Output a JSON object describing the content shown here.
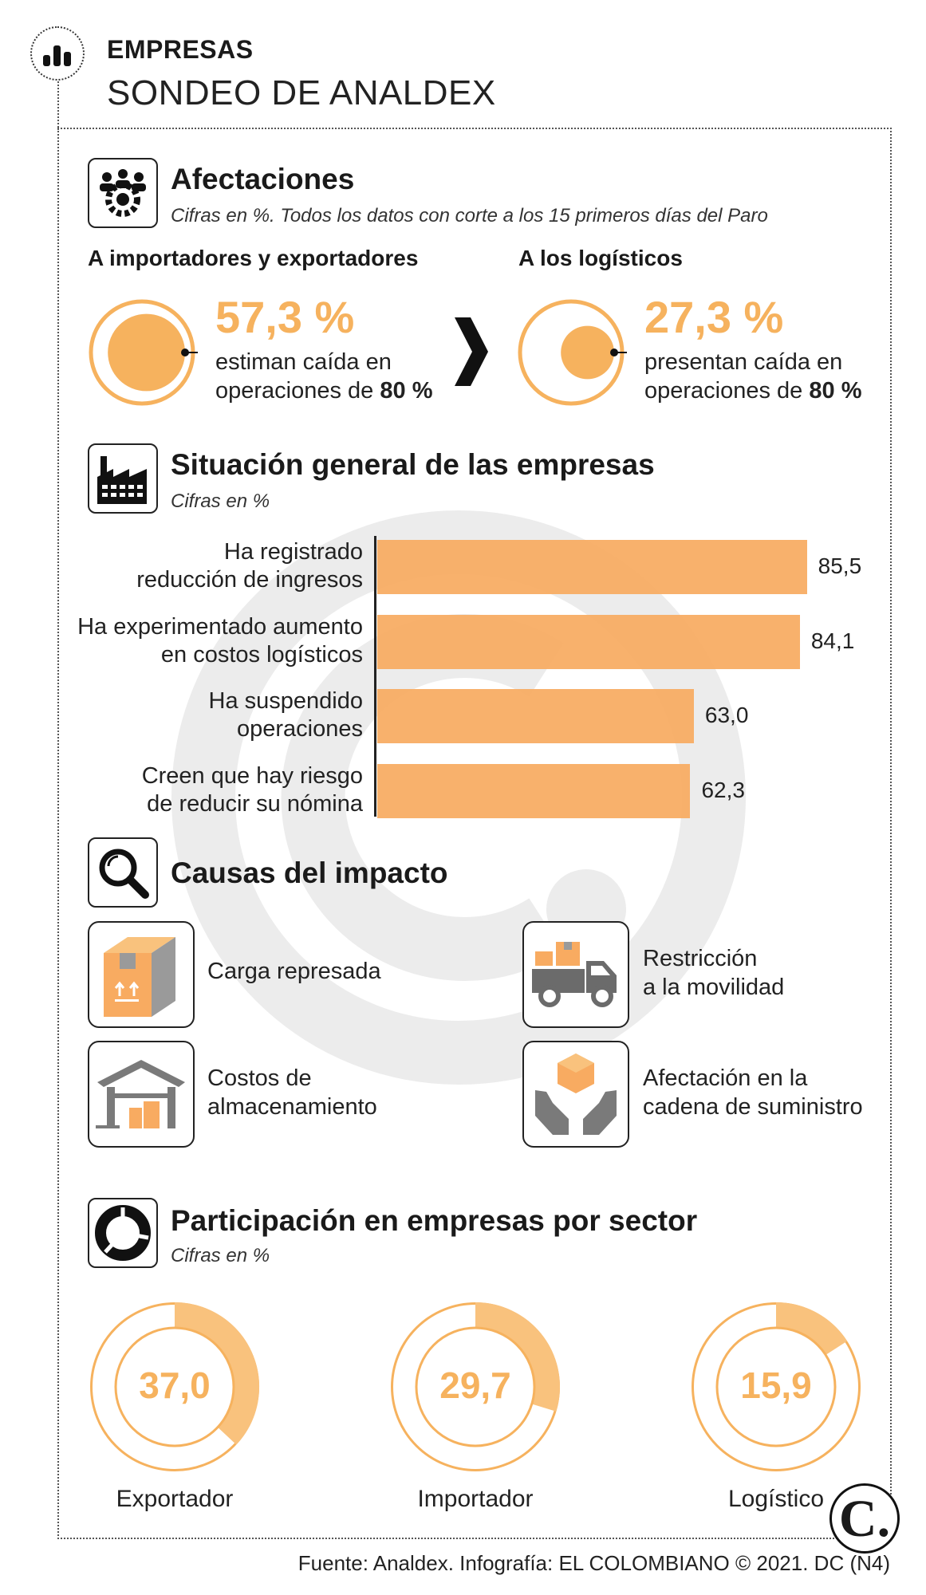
{
  "header": {
    "kicker": "EMPRESAS",
    "title": "SONDEO DE ANALDEX",
    "icon": "bar-chart-icon"
  },
  "afectaciones": {
    "title": "Afectaciones",
    "subtitle": "Cifras en %. Todos los datos con corte a los 15 primeros días del Paro",
    "icon": "people-gear-icon",
    "left": {
      "heading": "A importadores y exportadores",
      "value": "57,3 %",
      "fraction": 0.573,
      "line1": "estiman caída en",
      "line2_prefix": "operaciones de ",
      "line2_bold": "80 %"
    },
    "right": {
      "heading": "A los logísticos",
      "value": "27,3 %",
      "fraction": 0.273,
      "line1": "presentan caída en",
      "line2_prefix": "operaciones de ",
      "line2_bold": "80 %"
    }
  },
  "situacion": {
    "title": "Situación general de las empresas",
    "subtitle": "Cifras en %",
    "icon": "factory-icon"
  },
  "causas": {
    "title": "Causas del impacto",
    "icon": "magnifier-icon",
    "items": [
      {
        "line1": "Carga represada",
        "line2": "",
        "icon": "box-icon"
      },
      {
        "line1": "Restricción",
        "line2": "a la movilidad",
        "icon": "truck-icon"
      },
      {
        "line1": "Costos de",
        "line2": "almacenamiento",
        "icon": "warehouse-icon"
      },
      {
        "line1": "Afectación en la",
        "line2": "cadena de suministro",
        "icon": "hands-box-icon"
      }
    ]
  },
  "participacion": {
    "title": "Participación en empresas por sector",
    "subtitle": "Cifras en %",
    "icon": "pie-icon"
  },
  "colors": {
    "accent": "#f6b25e",
    "bar": "#f8ab61",
    "ring": "#f9c27d",
    "text": "#1a1a1a"
  },
  "chart_data": [
    {
      "type": "bar",
      "orientation": "horizontal",
      "title": "Situación general de las empresas",
      "subtitle": "Cifras en %",
      "categories": [
        [
          "Ha registrado",
          "reducción de ingresos"
        ],
        [
          "Ha experimentado aumento",
          "en costos logísticos"
        ],
        [
          "Ha suspendido",
          "operaciones"
        ],
        [
          "Creen que hay riesgo",
          "de reducir su nómina"
        ]
      ],
      "values": [
        85.5,
        84.1,
        63.0,
        62.3
      ],
      "value_labels": [
        "85,5",
        "84,1",
        "63,0",
        "62,3"
      ],
      "xlim": [
        0,
        100
      ],
      "grid": false
    },
    {
      "type": "pie",
      "style": "donut",
      "title": "Participación en empresas por sector",
      "subtitle": "Cifras en %",
      "categories": [
        "Exportador",
        "Importador",
        "Logístico"
      ],
      "values": [
        37.0,
        29.7,
        15.9
      ],
      "value_labels": [
        "37,0",
        "29,7",
        "15,9"
      ]
    }
  ],
  "footer": "Fuente: Analdex. Infografía: EL COLOMBIANO © 2021. DC (N4)",
  "logo": "C."
}
